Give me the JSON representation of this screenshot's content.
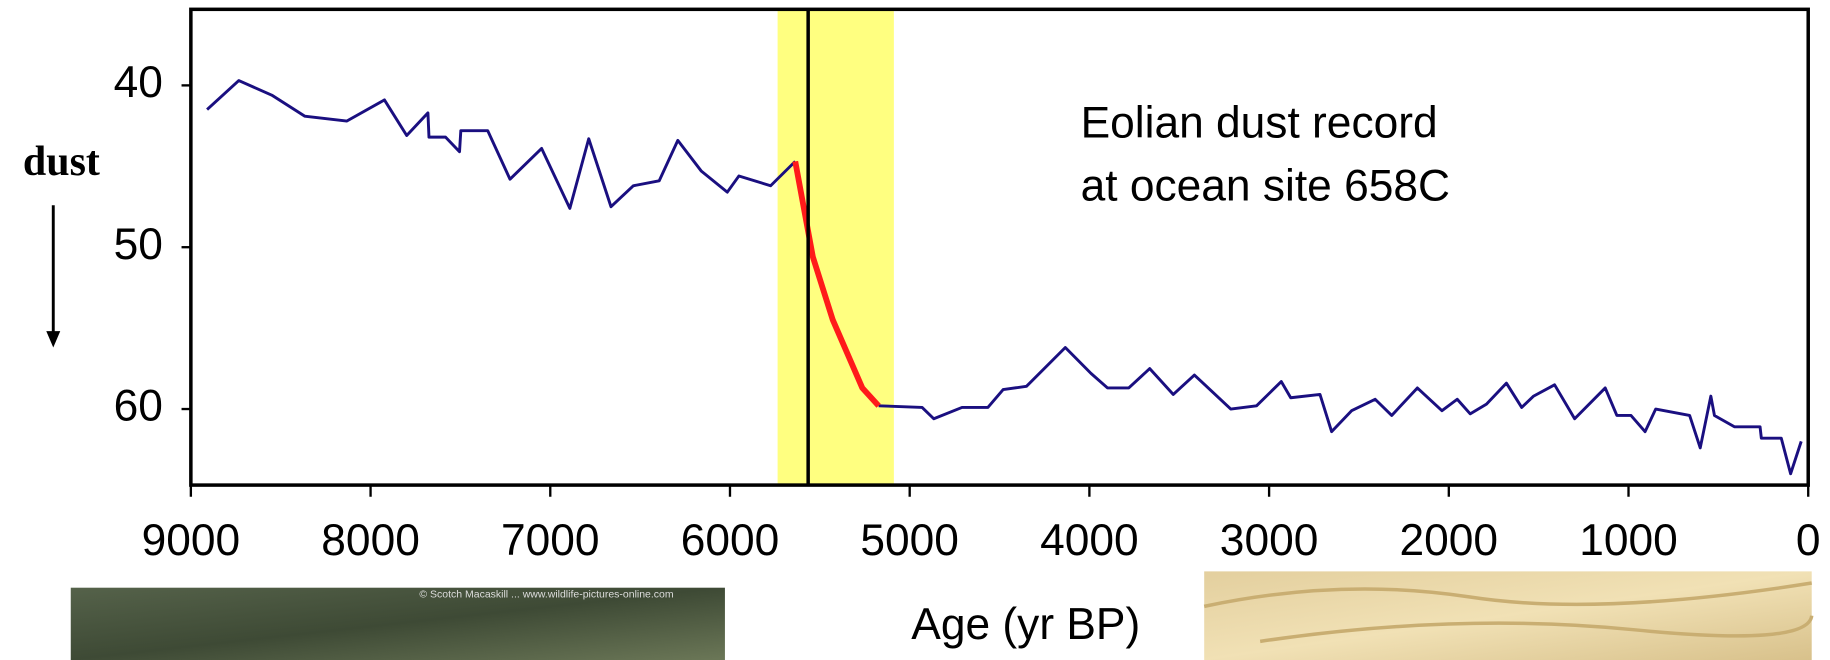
{
  "chart_data": {
    "type": "line",
    "annotation": [
      "Eolian dust record",
      "at ocean site 658C"
    ],
    "ylabel": "dust",
    "xlabel": "Age (yr BP)",
    "photo_credit": "© Scotch Macaskill ... www.wildlife-pictures-online.com",
    "x": [
      8910,
      8733,
      8550,
      8367,
      8132,
      7923,
      7799,
      7681,
      7675,
      7583,
      7505,
      7498,
      7348,
      7224,
      7048,
      6891,
      6786,
      6662,
      6538,
      6394,
      6290,
      6159,
      6015,
      5950,
      5774,
      5637,
      5539,
      5428,
      5264,
      5173,
      4931,
      4866,
      4709,
      4565,
      4480,
      4350,
      4134,
      3991,
      3899,
      3781,
      3664,
      3533,
      3416,
      3213,
      3070,
      2932,
      2880,
      2717,
      2652,
      2541,
      2410,
      2318,
      2175,
      2038,
      1953,
      1881,
      1790,
      1679,
      1594,
      1528,
      1411,
      1300,
      1130,
      1065,
      986,
      908,
      849,
      660,
      601,
      542,
      522,
      411,
      268,
      261,
      150,
      98,
      39
    ],
    "series": [
      {
        "color": "#1a0f80",
        "values": [
          41.5,
          39.7,
          40.6,
          41.9,
          42.2,
          40.9,
          43.1,
          41.7,
          43.2,
          43.2,
          44.1,
          42.8,
          42.8,
          45.8,
          43.9,
          47.6,
          43.3,
          47.5,
          46.2,
          45.9,
          43.4,
          45.3,
          46.6,
          45.6,
          46.2,
          44.7,
          null,
          null,
          null,
          59.8,
          59.9,
          60.6,
          59.9,
          59.9,
          58.8,
          58.6,
          56.2,
          57.8,
          58.7,
          58.7,
          57.5,
          59.1,
          57.9,
          60.0,
          59.8,
          58.3,
          59.3,
          59.1,
          61.4,
          60.1,
          59.4,
          60.4,
          58.7,
          60.1,
          59.4,
          60.3,
          59.7,
          58.4,
          59.9,
          59.2,
          58.5,
          60.6,
          58.7,
          60.4,
          60.4,
          61.4,
          60.0,
          60.4,
          62.4,
          59.2,
          60.4,
          61.1,
          61.1,
          61.8,
          61.8,
          64.0,
          62.0
        ]
      },
      {
        "color": "#ff1a1a",
        "values": [
          null,
          null,
          null,
          null,
          null,
          null,
          null,
          null,
          null,
          null,
          null,
          null,
          null,
          null,
          null,
          null,
          null,
          null,
          null,
          null,
          null,
          null,
          null,
          null,
          null,
          44.7,
          50.6,
          54.5,
          58.7,
          59.8,
          null,
          null,
          null,
          null,
          null,
          null,
          null,
          null,
          null,
          null,
          null,
          null,
          null,
          null,
          null,
          null,
          null,
          null,
          null,
          null,
          null,
          null,
          null,
          null,
          null,
          null,
          null,
          null,
          null,
          null,
          null,
          null,
          null,
          null,
          null,
          null,
          null,
          null,
          null,
          null,
          null,
          null,
          null,
          null,
          null,
          null,
          null
        ]
      }
    ],
    "xlim": [
      9000,
      0
    ],
    "xticks": [
      9000,
      8000,
      7000,
      6000,
      5000,
      4000,
      3000,
      2000,
      1000,
      0
    ],
    "ylim": [
      64.7,
      35.3
    ],
    "yticks": [
      40,
      50,
      60
    ],
    "highlight_band": [
      5735,
      5088
    ],
    "highlight_color": "#ffff80",
    "marker_line": 5565
  }
}
